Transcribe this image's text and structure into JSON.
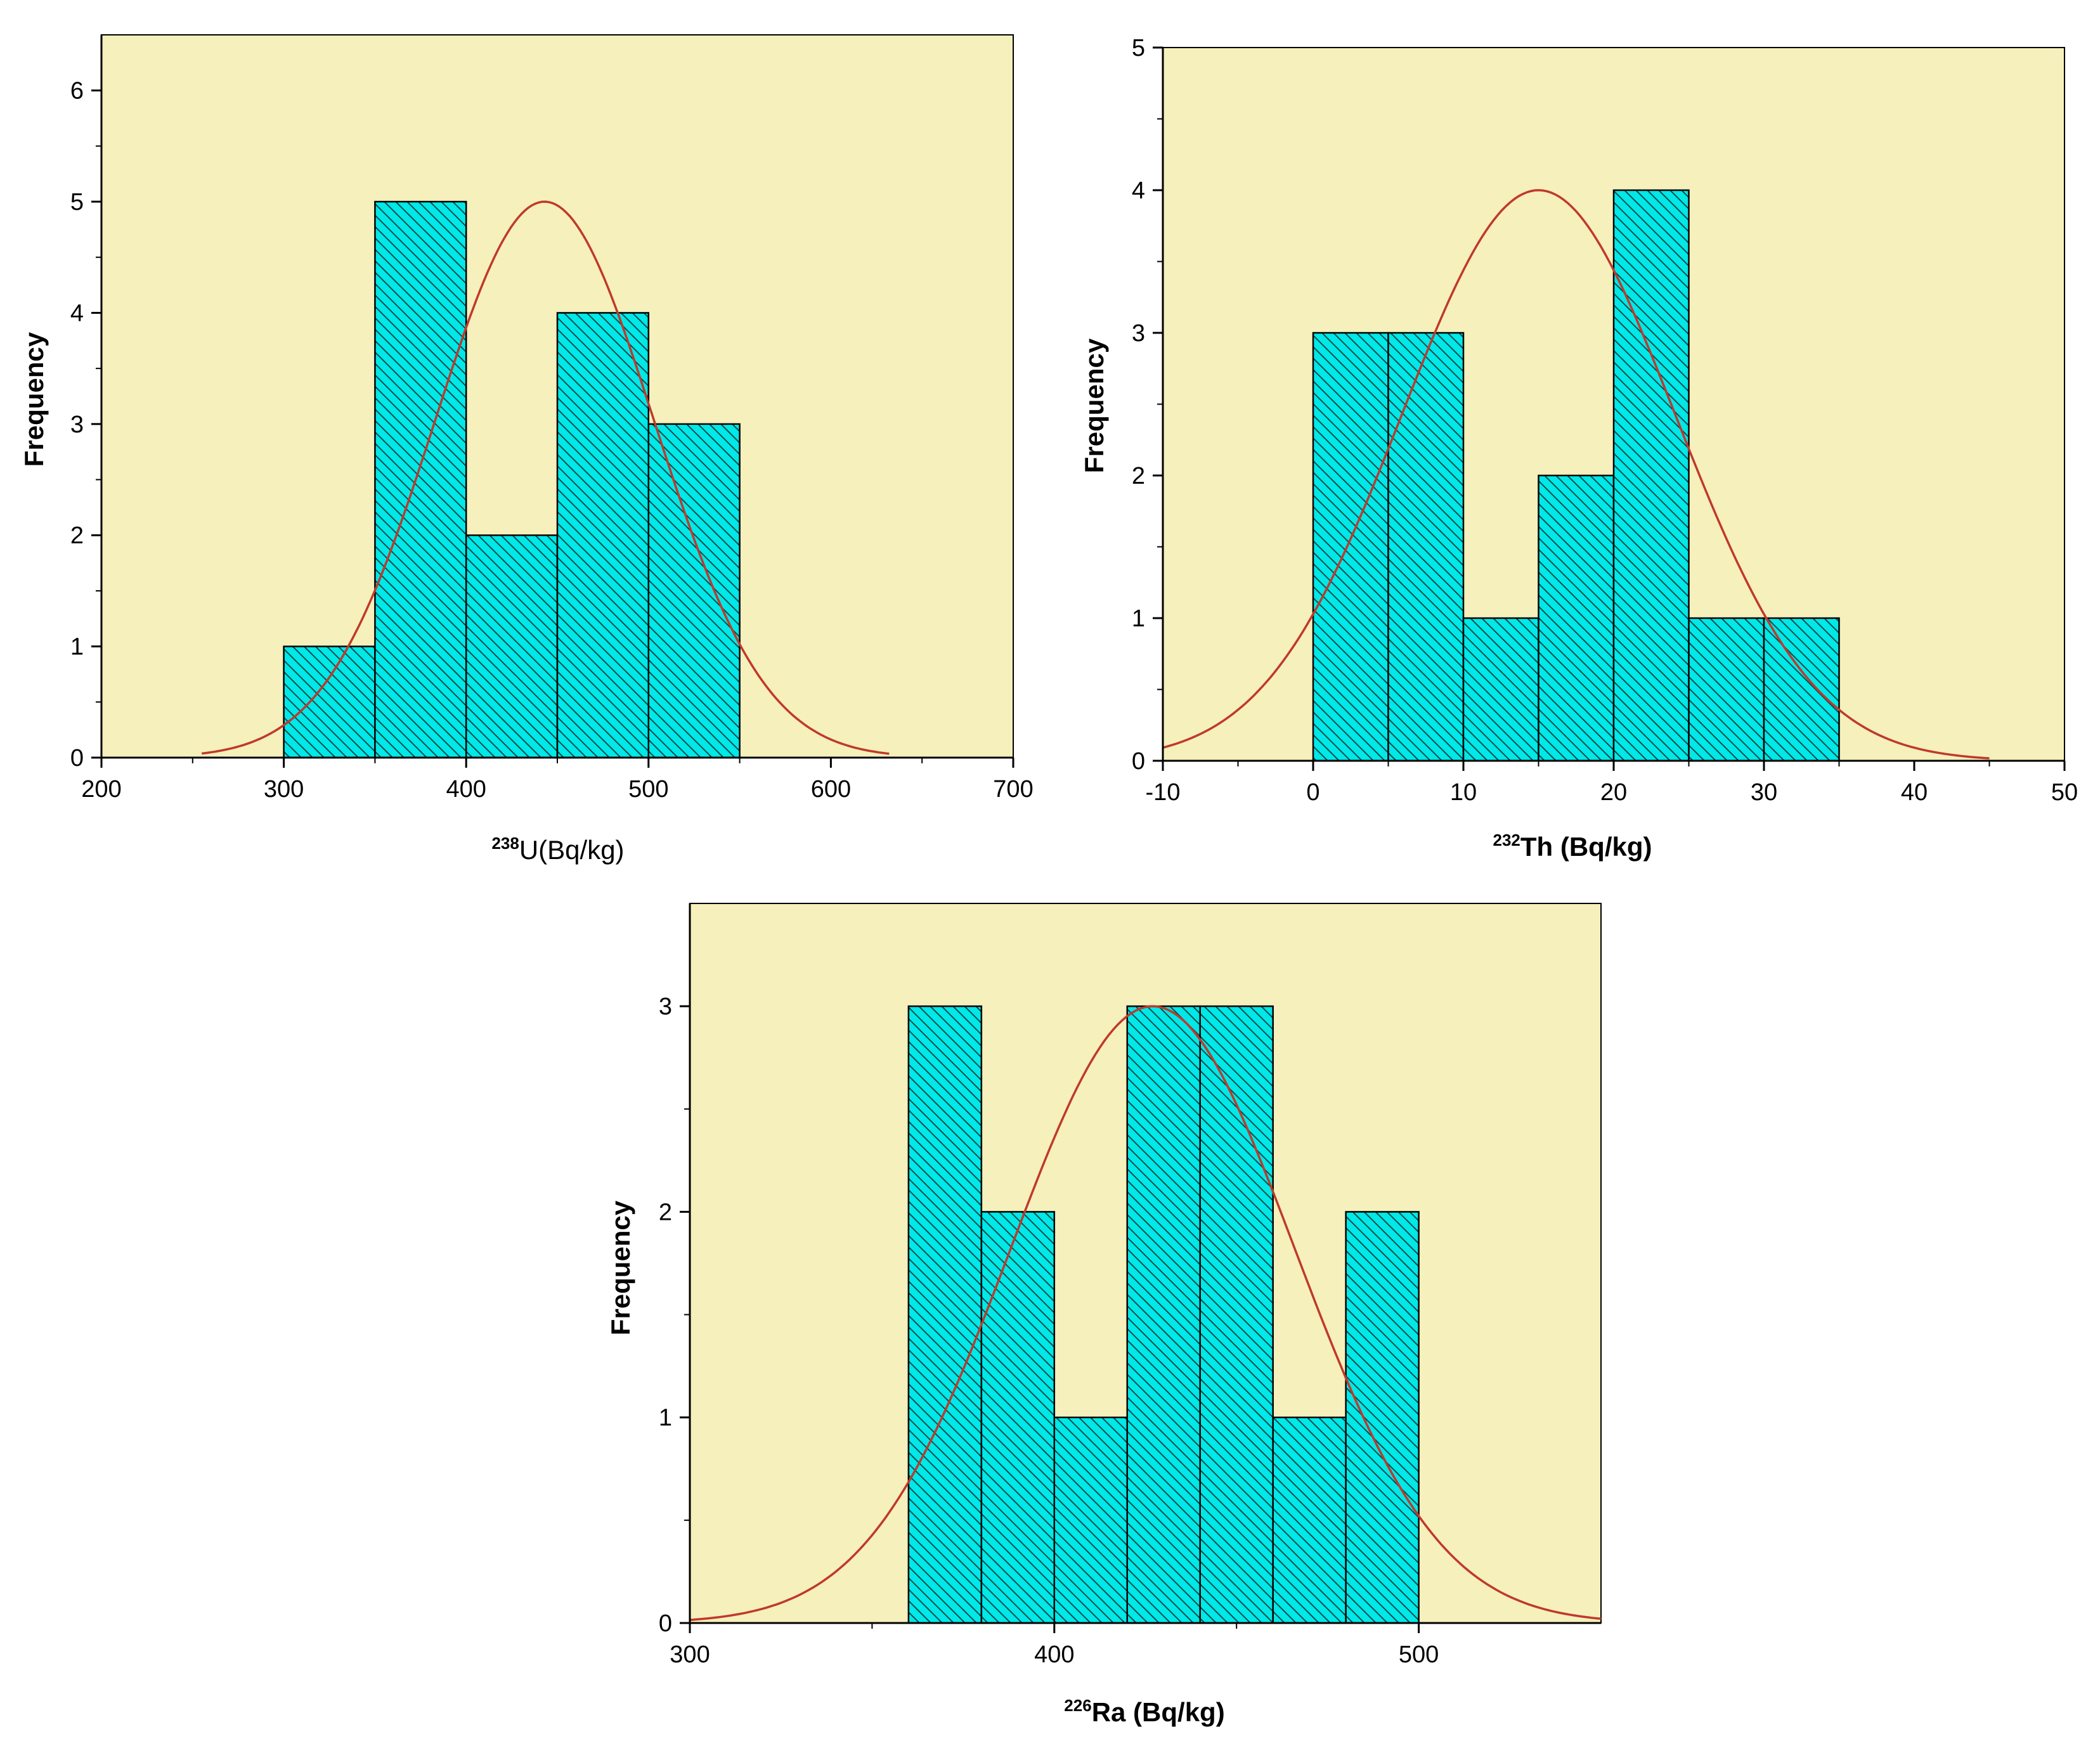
{
  "colors": {
    "plot_background": "#f5f0bc",
    "bar_fill": "#00e8e8",
    "bar_hatch": "#0a4a4a",
    "bar_outline": "#000000",
    "normal_curve": "#c0392b",
    "axis": "#000000"
  },
  "chart_data": [
    {
      "type": "bar",
      "subtype": "histogram-with-normal-fit",
      "ylabel": "Frequency",
      "xlabel": {
        "isotope": "238",
        "text": "U(Bq/kg)",
        "bold": false
      },
      "xlim": [
        200,
        700
      ],
      "ylim": [
        0,
        6.5
      ],
      "xticks": [
        200,
        300,
        400,
        500,
        600,
        700
      ],
      "yticks": [
        0,
        1,
        2,
        3,
        4,
        5,
        6
      ],
      "x_minor_step": 50,
      "y_minor_step": 0.5,
      "bins": [
        {
          "from": 300,
          "to": 350,
          "count": 1
        },
        {
          "from": 350,
          "to": 400,
          "count": 5
        },
        {
          "from": 400,
          "to": 450,
          "count": 2
        },
        {
          "from": 450,
          "to": 500,
          "count": 4
        },
        {
          "from": 500,
          "to": 550,
          "count": 3
        }
      ],
      "fit_curve": {
        "type": "normal",
        "mean": 443,
        "sd": 60,
        "peak": 5,
        "x_range": [
          255,
          632
        ]
      }
    },
    {
      "type": "bar",
      "subtype": "histogram-with-normal-fit",
      "ylabel": "Frequency",
      "xlabel": {
        "isotope": "232",
        "text": "Th (Bq/kg)",
        "bold": true
      },
      "xlim": [
        -10,
        50
      ],
      "ylim": [
        0,
        5
      ],
      "xticks": [
        -10,
        0,
        10,
        20,
        30,
        40,
        50
      ],
      "yticks": [
        0,
        1,
        2,
        3,
        4,
        5
      ],
      "x_minor_step": 5,
      "y_minor_step": 0.5,
      "bins": [
        {
          "from": 0,
          "to": 5,
          "count": 3
        },
        {
          "from": 5,
          "to": 10,
          "count": 3
        },
        {
          "from": 10,
          "to": 15,
          "count": 1
        },
        {
          "from": 15,
          "to": 20,
          "count": 2
        },
        {
          "from": 20,
          "to": 25,
          "count": 4
        },
        {
          "from": 25,
          "to": 30,
          "count": 1
        },
        {
          "from": 30,
          "to": 35,
          "count": 1
        }
      ],
      "fit_curve": {
        "type": "normal",
        "mean": 15,
        "sd": 9.1,
        "peak": 4,
        "x_range": [
          -10,
          45
        ]
      }
    },
    {
      "type": "bar",
      "subtype": "histogram-with-normal-fit",
      "ylabel": "Frequency",
      "xlabel": {
        "isotope": "226",
        "text": "Ra (Bq/kg)",
        "bold": true
      },
      "xlim": [
        300,
        550
      ],
      "ylim": [
        0,
        3.5
      ],
      "xticks": [
        300,
        400,
        500
      ],
      "yticks": [
        0,
        1,
        2,
        3
      ],
      "x_minor_step": 50,
      "y_minor_step": 0.5,
      "bins": [
        {
          "from": 360,
          "to": 380,
          "count": 3
        },
        {
          "from": 380,
          "to": 400,
          "count": 2
        },
        {
          "from": 400,
          "to": 420,
          "count": 1
        },
        {
          "from": 420,
          "to": 440,
          "count": 3
        },
        {
          "from": 440,
          "to": 460,
          "count": 3
        },
        {
          "from": 460,
          "to": 480,
          "count": 1
        },
        {
          "from": 480,
          "to": 500,
          "count": 2
        }
      ],
      "fit_curve": {
        "type": "normal",
        "mean": 427,
        "sd": 39,
        "peak": 3,
        "x_range": [
          300,
          550
        ]
      }
    }
  ]
}
